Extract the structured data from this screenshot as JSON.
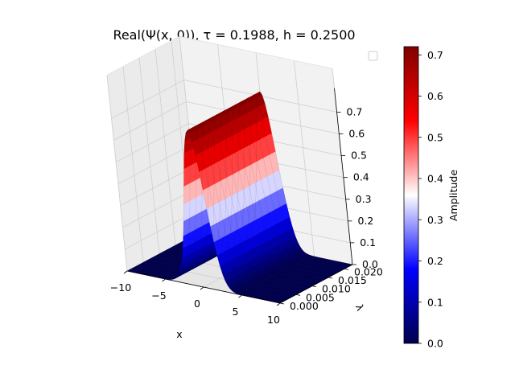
{
  "chart_data": {
    "type": "surface3d",
    "title": "Real(Ψ(x, 0)), τ = 0.1988, h = 0.2500",
    "xlabel": "x",
    "ylabel": "λ",
    "zlabel": "",
    "xlim": [
      -10,
      10
    ],
    "ylim": [
      0,
      0.0225
    ],
    "zlim": [
      0,
      0.72
    ],
    "x_ticks": [
      "−10",
      "−5",
      "0",
      "5",
      "10"
    ],
    "y_ticks": [
      "0.000",
      "0.005",
      "0.010",
      "0.015",
      "0.020"
    ],
    "z_ticks": [
      "0.0",
      "0.1",
      "0.2",
      "0.3",
      "0.4",
      "0.5",
      "0.6",
      "0.7"
    ],
    "surface": {
      "function": "z = peak * exp(-(x - center)^2 / (2 * width^2)), constant along λ",
      "peak": 0.72,
      "center": 0,
      "width": 1.3
    },
    "colorbar": {
      "label": "Amplitude",
      "colormap": "seismic",
      "range": [
        0.0,
        0.72
      ],
      "ticks": [
        "0.0",
        "0.1",
        "0.2",
        "0.3",
        "0.4",
        "0.5",
        "0.6",
        "0.7"
      ]
    },
    "legend": {
      "position": "top-right",
      "entries": []
    },
    "grid": true
  }
}
